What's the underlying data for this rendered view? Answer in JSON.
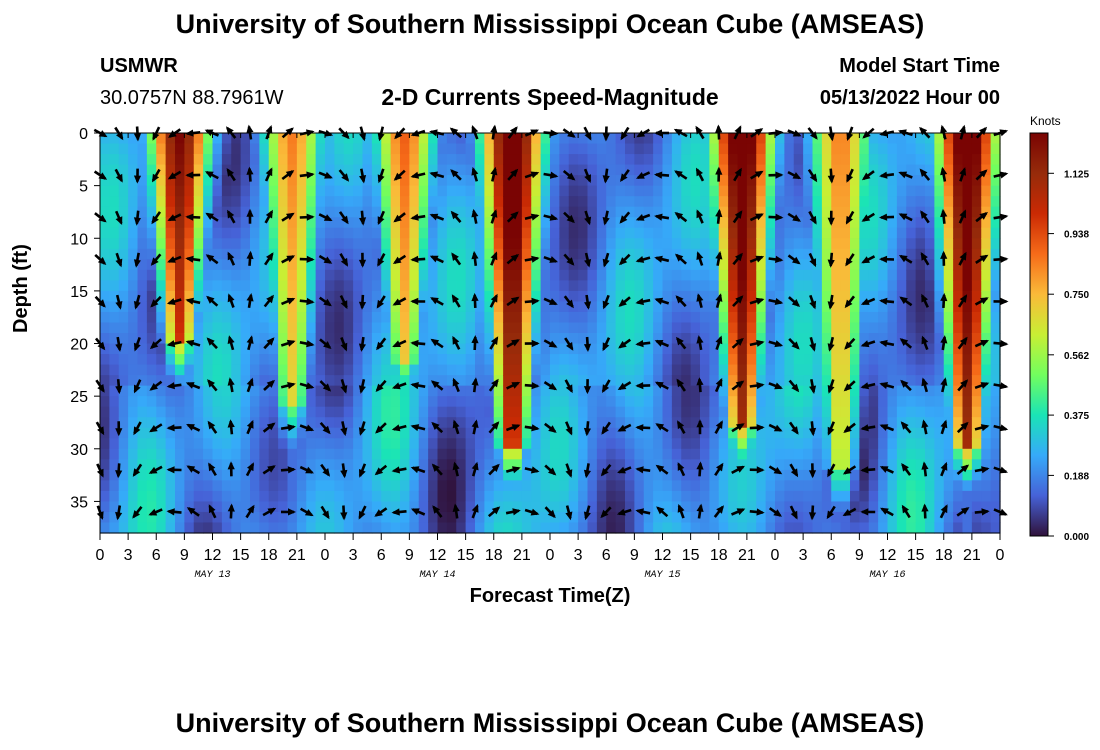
{
  "header": {
    "title": "University of Southern Mississippi Ocean Cube (AMSEAS)",
    "station": "USMWR",
    "coordinates": "30.0757N  88.7961W",
    "subtitle": "2-D Currents Speed-Magnitude",
    "model_start_label": "Model Start Time",
    "model_start_value": "05/13/2022 Hour 00"
  },
  "footer": {
    "title": "University of Southern Mississippi Ocean Cube (AMSEAS)"
  },
  "colors": {
    "arrow": "#000000",
    "axis": "#000000",
    "background": "#ffffff"
  },
  "chart_data": {
    "type": "heatmap",
    "title": "2-D Currents Speed-Magnitude",
    "xlabel": "Forecast Time(Z)",
    "ylabel": "Depth (ft)",
    "x_range_hours": [
      0,
      96
    ],
    "x_tick_step_hours": 3,
    "x_tick_labels": [
      "0",
      "3",
      "6",
      "9",
      "12",
      "15",
      "18",
      "21",
      "0",
      "3",
      "6",
      "9",
      "12",
      "15",
      "18",
      "21",
      "0",
      "3",
      "6",
      "9",
      "12",
      "15",
      "18",
      "21",
      "0",
      "3",
      "6",
      "9",
      "12",
      "15",
      "18",
      "21",
      "0"
    ],
    "day_labels": [
      {
        "label": "MAY 13",
        "hour": 12
      },
      {
        "label": "MAY 14",
        "hour": 36
      },
      {
        "label": "MAY 15",
        "hour": 60
      },
      {
        "label": "MAY 16",
        "hour": 84
      }
    ],
    "y_range_ft": [
      0,
      38
    ],
    "y_ticks": [
      "0",
      "5",
      "10",
      "15",
      "20",
      "25",
      "30",
      "35"
    ],
    "colorbar": {
      "unit": "Knots",
      "min": 0.0,
      "max": 1.25,
      "tick_labels": [
        "1.125",
        "0.938",
        "0.750",
        "0.562",
        "0.375",
        "0.188",
        "0.000"
      ],
      "tick_values": [
        1.125,
        0.938,
        0.75,
        0.562,
        0.375,
        0.188,
        0.0
      ]
    },
    "arrow_depths_ft": [
      0,
      4,
      8,
      12,
      16,
      20,
      24,
      28,
      32,
      36
    ],
    "arrow_time_step_hours": 2,
    "speed_peaks": [
      {
        "center_hour": 8.5,
        "speed": 1.1,
        "extends_to_ft": 20
      },
      {
        "center_hour": 20.5,
        "speed": 0.7,
        "extends_to_ft": 26
      },
      {
        "center_hour": 32.5,
        "speed": 0.75,
        "extends_to_ft": 22
      },
      {
        "center_hour": 44.0,
        "speed": 1.25,
        "extends_to_ft": 30
      },
      {
        "center_hour": 68.5,
        "speed": 1.25,
        "extends_to_ft": 28
      },
      {
        "center_hour": 79.0,
        "speed": 0.7,
        "extends_to_ft": 32
      },
      {
        "center_hour": 92.5,
        "speed": 1.25,
        "extends_to_ft": 30
      }
    ]
  }
}
